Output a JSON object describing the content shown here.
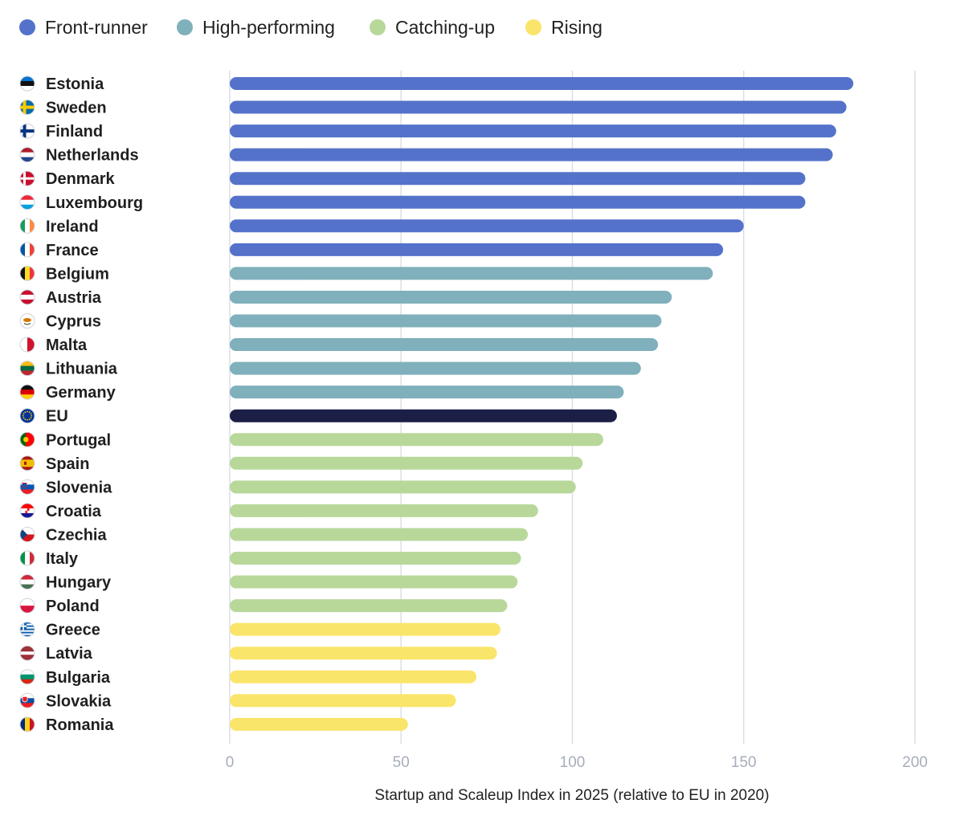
{
  "chart_data": {
    "type": "bar",
    "orientation": "horizontal",
    "xlabel": "Startup and Scaleup Index in 2025 (relative to EU in 2020)",
    "xlim": [
      0,
      200
    ],
    "xticks": [
      0,
      50,
      100,
      150,
      200
    ],
    "grid": true,
    "legend_position": "top-left",
    "groups": [
      {
        "key": "front",
        "name": "Front-runner",
        "color": "#5472c9"
      },
      {
        "key": "high",
        "name": "High-performing",
        "color": "#7fb0bb"
      },
      {
        "key": "catch",
        "name": "Catching-up",
        "color": "#b8d89a"
      },
      {
        "key": "rising",
        "name": "Rising",
        "color": "#fae56b"
      },
      {
        "key": "eu",
        "name": "",
        "color": "#1c1f45"
      }
    ],
    "rows": [
      {
        "country": "Estonia",
        "value": 182,
        "group": "front",
        "flag": "estonia-flag-icon"
      },
      {
        "country": "Sweden",
        "value": 180,
        "group": "front",
        "flag": "sweden-flag-icon"
      },
      {
        "country": "Finland",
        "value": 177,
        "group": "front",
        "flag": "finland-flag-icon"
      },
      {
        "country": "Netherlands",
        "value": 176,
        "group": "front",
        "flag": "netherlands-flag-icon"
      },
      {
        "country": "Denmark",
        "value": 168,
        "group": "front",
        "flag": "denmark-flag-icon"
      },
      {
        "country": "Luxembourg",
        "value": 168,
        "group": "front",
        "flag": "luxembourg-flag-icon"
      },
      {
        "country": "Ireland",
        "value": 150,
        "group": "front",
        "flag": "ireland-flag-icon"
      },
      {
        "country": "France",
        "value": 144,
        "group": "front",
        "flag": "france-flag-icon"
      },
      {
        "country": "Belgium",
        "value": 141,
        "group": "high",
        "flag": "belgium-flag-icon"
      },
      {
        "country": "Austria",
        "value": 129,
        "group": "high",
        "flag": "austria-flag-icon"
      },
      {
        "country": "Cyprus",
        "value": 126,
        "group": "high",
        "flag": "cyprus-flag-icon"
      },
      {
        "country": "Malta",
        "value": 125,
        "group": "high",
        "flag": "malta-flag-icon"
      },
      {
        "country": "Lithuania",
        "value": 120,
        "group": "high",
        "flag": "lithuania-flag-icon"
      },
      {
        "country": "Germany",
        "value": 115,
        "group": "high",
        "flag": "germany-flag-icon"
      },
      {
        "country": "EU",
        "value": 113,
        "group": "eu",
        "flag": "eu-flag-icon"
      },
      {
        "country": "Portugal",
        "value": 109,
        "group": "catch",
        "flag": "portugal-flag-icon"
      },
      {
        "country": "Spain",
        "value": 103,
        "group": "catch",
        "flag": "spain-flag-icon"
      },
      {
        "country": "Slovenia",
        "value": 101,
        "group": "catch",
        "flag": "slovenia-flag-icon"
      },
      {
        "country": "Croatia",
        "value": 90,
        "group": "catch",
        "flag": "croatia-flag-icon"
      },
      {
        "country": "Czechia",
        "value": 87,
        "group": "catch",
        "flag": "czechia-flag-icon"
      },
      {
        "country": "Italy",
        "value": 85,
        "group": "catch",
        "flag": "italy-flag-icon"
      },
      {
        "country": "Hungary",
        "value": 84,
        "group": "catch",
        "flag": "hungary-flag-icon"
      },
      {
        "country": "Poland",
        "value": 81,
        "group": "catch",
        "flag": "poland-flag-icon"
      },
      {
        "country": "Greece",
        "value": 79,
        "group": "rising",
        "flag": "greece-flag-icon"
      },
      {
        "country": "Latvia",
        "value": 78,
        "group": "rising",
        "flag": "latvia-flag-icon"
      },
      {
        "country": "Bulgaria",
        "value": 72,
        "group": "rising",
        "flag": "bulgaria-flag-icon"
      },
      {
        "country": "Slovakia",
        "value": 66,
        "group": "rising",
        "flag": "slovakia-flag-icon"
      },
      {
        "country": "Romania",
        "value": 52,
        "group": "rising",
        "flag": "romania-flag-icon"
      }
    ]
  }
}
